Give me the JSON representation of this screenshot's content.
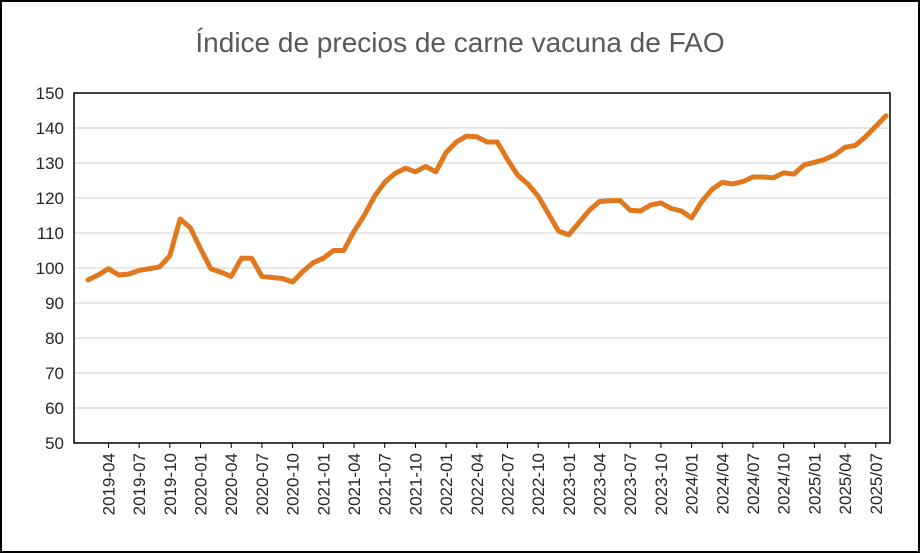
{
  "chart_data": {
    "type": "line",
    "title": "Índice de precios de carne vacuna de FAO",
    "xlabel": "",
    "ylabel": "",
    "ylim": [
      50,
      150
    ],
    "yticks": [
      "50",
      "60",
      "70",
      "80",
      "90",
      "100",
      "110",
      "120",
      "130",
      "140",
      "150"
    ],
    "xtick_labels": [
      "2019-04",
      "2019-07",
      "2019-10",
      "2020-01",
      "2020-04",
      "2020-07",
      "2020-10",
      "2021-01",
      "2021-04",
      "2021-07",
      "2021-10",
      "2022-01",
      "2022-04",
      "2022-07",
      "2022-10",
      "2023-01",
      "2023-04",
      "2023-07",
      "2023-10",
      "2024/01",
      "2024/04",
      "2024/07",
      "2024/10",
      "2025/01",
      "2025/04",
      "2025/07"
    ],
    "grid": true,
    "legend": "none",
    "line_color": "#E07820",
    "series": [
      {
        "x": [
          "2019-02",
          "2019-03",
          "2019-04",
          "2019-05",
          "2019-06",
          "2019-07",
          "2019-08",
          "2019-09",
          "2019-10",
          "2019-11",
          "2019-12",
          "2020-01",
          "2020-02",
          "2020-03",
          "2020-04",
          "2020-05",
          "2020-06",
          "2020-07",
          "2020-08",
          "2020-09",
          "2020-10",
          "2020-11",
          "2020-12",
          "2021-01",
          "2021-02",
          "2021-03",
          "2021-04",
          "2021-05",
          "2021-06",
          "2021-07",
          "2021-08",
          "2021-09",
          "2021-10",
          "2021-11",
          "2021-12",
          "2022-01",
          "2022-02",
          "2022-03",
          "2022-04",
          "2022-05",
          "2022-06",
          "2022-07",
          "2022-08",
          "2022-09",
          "2022-10",
          "2022-11",
          "2022-12",
          "2023-01",
          "2023-02",
          "2023-03",
          "2023-04",
          "2023-05",
          "2023-06",
          "2023-07",
          "2023-08",
          "2023-09",
          "2023-10",
          "2023-11",
          "2023-12",
          "2024-01",
          "2024-02",
          "2024-03",
          "2024-04",
          "2024-05",
          "2024-06",
          "2024-07",
          "2024-08",
          "2024-09",
          "2024-10",
          "2024-11",
          "2024-12",
          "2025-01",
          "2025-02",
          "2025-03",
          "2025-04",
          "2025-05",
          "2025-06",
          "2025-07",
          "2025-08"
        ],
        "values": [
          96.6,
          98,
          99.8,
          98,
          98.3,
          99.3,
          99.8,
          100.3,
          103.5,
          114,
          111.5,
          105.5,
          99.8,
          98.8,
          97.6,
          102.8,
          102.8,
          97.6,
          97.3,
          97,
          96,
          99,
          101.5,
          102.8,
          105,
          105,
          110.5,
          115,
          120.5,
          124.5,
          127,
          128.5,
          127.5,
          129,
          127.5,
          133,
          136,
          137.7,
          137.5,
          136,
          136,
          131,
          126.5,
          124,
          120.5,
          115.5,
          110.5,
          109.5,
          113,
          116.5,
          119,
          119.2,
          119.3,
          116.5,
          116.3,
          118,
          118.6,
          117,
          116.3,
          114.3,
          119,
          122.5,
          124.5,
          124,
          124.7,
          126,
          126,
          125.8,
          127.2,
          126.8,
          129.5,
          130.2,
          131,
          132.3,
          134.5,
          135,
          137.5,
          140.5,
          143.5
        ]
      }
    ]
  }
}
